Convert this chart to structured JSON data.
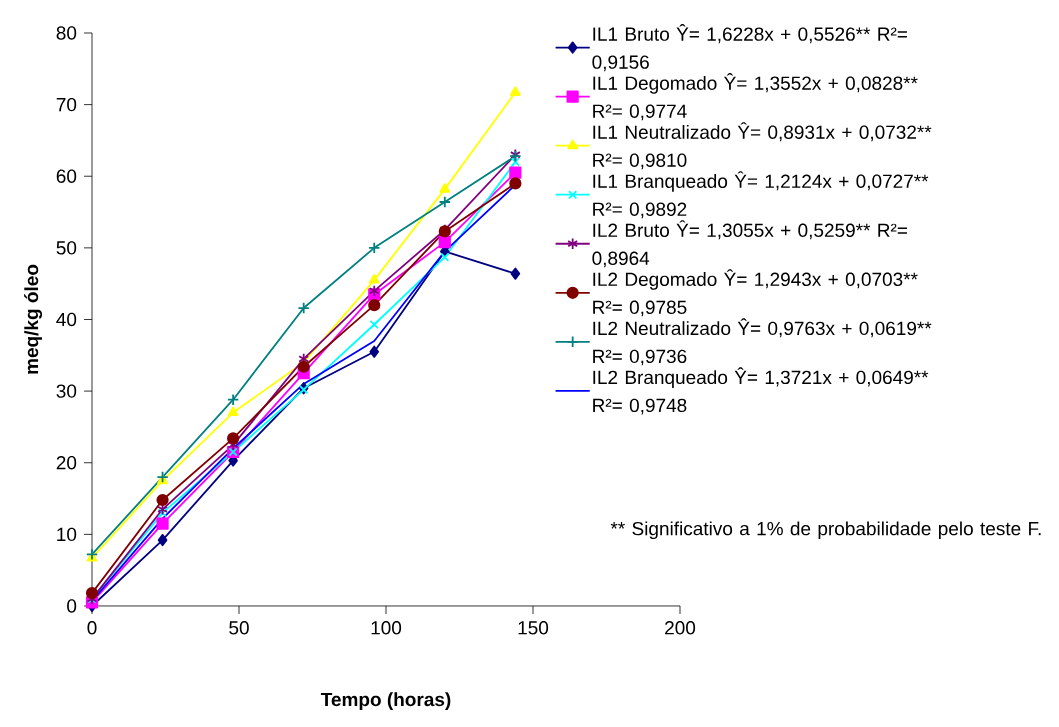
{
  "chart_data": {
    "type": "line",
    "xlabel": "Tempo (horas)",
    "ylabel": "meq/kg óleo",
    "x": [
      0,
      24,
      48,
      72,
      96,
      120,
      144
    ],
    "xlim": [
      0,
      200
    ],
    "xticks": [
      0,
      50,
      100,
      150,
      200
    ],
    "ylim": [
      0,
      80
    ],
    "yticks": [
      0,
      10,
      20,
      30,
      40,
      50,
      60,
      70,
      80
    ],
    "grid": false,
    "legend": "right",
    "annotations": [
      "** Significativo a 1% de probabilidade pelo teste F."
    ],
    "series": [
      {
        "name": "IL1 Bruto Ŷ= 1,6228x + 0,5526** R²= 0,9156",
        "color": "#000080",
        "marker": "diamond",
        "values": [
          0,
          9.2,
          20.3,
          30.4,
          35.5,
          49.5,
          46.4
        ]
      },
      {
        "name": "IL1 Degomado Ŷ= 1,3552x + 0,0828** R²= 0,9774",
        "color": "#ff00ff",
        "marker": "square",
        "values": [
          0.5,
          11.5,
          21.5,
          32.5,
          43.5,
          50.8,
          60.5
        ]
      },
      {
        "name": "IL1 Neutralizado Ŷ= 0,8931x + 0,0732** R²= 0,9810",
        "color": "#ffff00",
        "marker": "triangle",
        "values": [
          6.7,
          17.5,
          27,
          34,
          45.5,
          58.2,
          71.7
        ]
      },
      {
        "name": "IL1 Branqueado Ŷ= 1,2124x + 0,0727** R²= 0,9892",
        "color": "#00ffff",
        "marker": "cross",
        "values": [
          1,
          13,
          21.5,
          30.2,
          39.3,
          48.7,
          62
        ]
      },
      {
        "name": "IL2 Bruto Ŷ= 1,3055x + 0,5259** R²= 0,8964",
        "color": "#800080",
        "marker": "cross",
        "values": [
          1,
          13.5,
          22.5,
          34.5,
          44,
          52.5,
          63
        ]
      },
      {
        "name": "IL2 Degomado Ŷ= 1,2943x + 0,0703** R²= 0,9785",
        "color": "#800000",
        "marker": "circle",
        "values": [
          1.8,
          14.8,
          23.4,
          33.4,
          42,
          52.3,
          59
        ]
      },
      {
        "name": "IL2 Neutralizado Ŷ= 0,9763x + 0,0619** R²= 0,9736",
        "color": "#008080",
        "marker": "plus",
        "values": [
          7.2,
          18,
          28.8,
          41.6,
          50,
          56.4,
          62.8
        ]
      },
      {
        "name": "IL2 Branqueado Ŷ= 1,3721x + 0,0649** R²= 0,9748",
        "color": "#0000ff",
        "marker": "none",
        "values": [
          0.7,
          12.2,
          22,
          31,
          37,
          49.5,
          58.8
        ]
      }
    ]
  }
}
